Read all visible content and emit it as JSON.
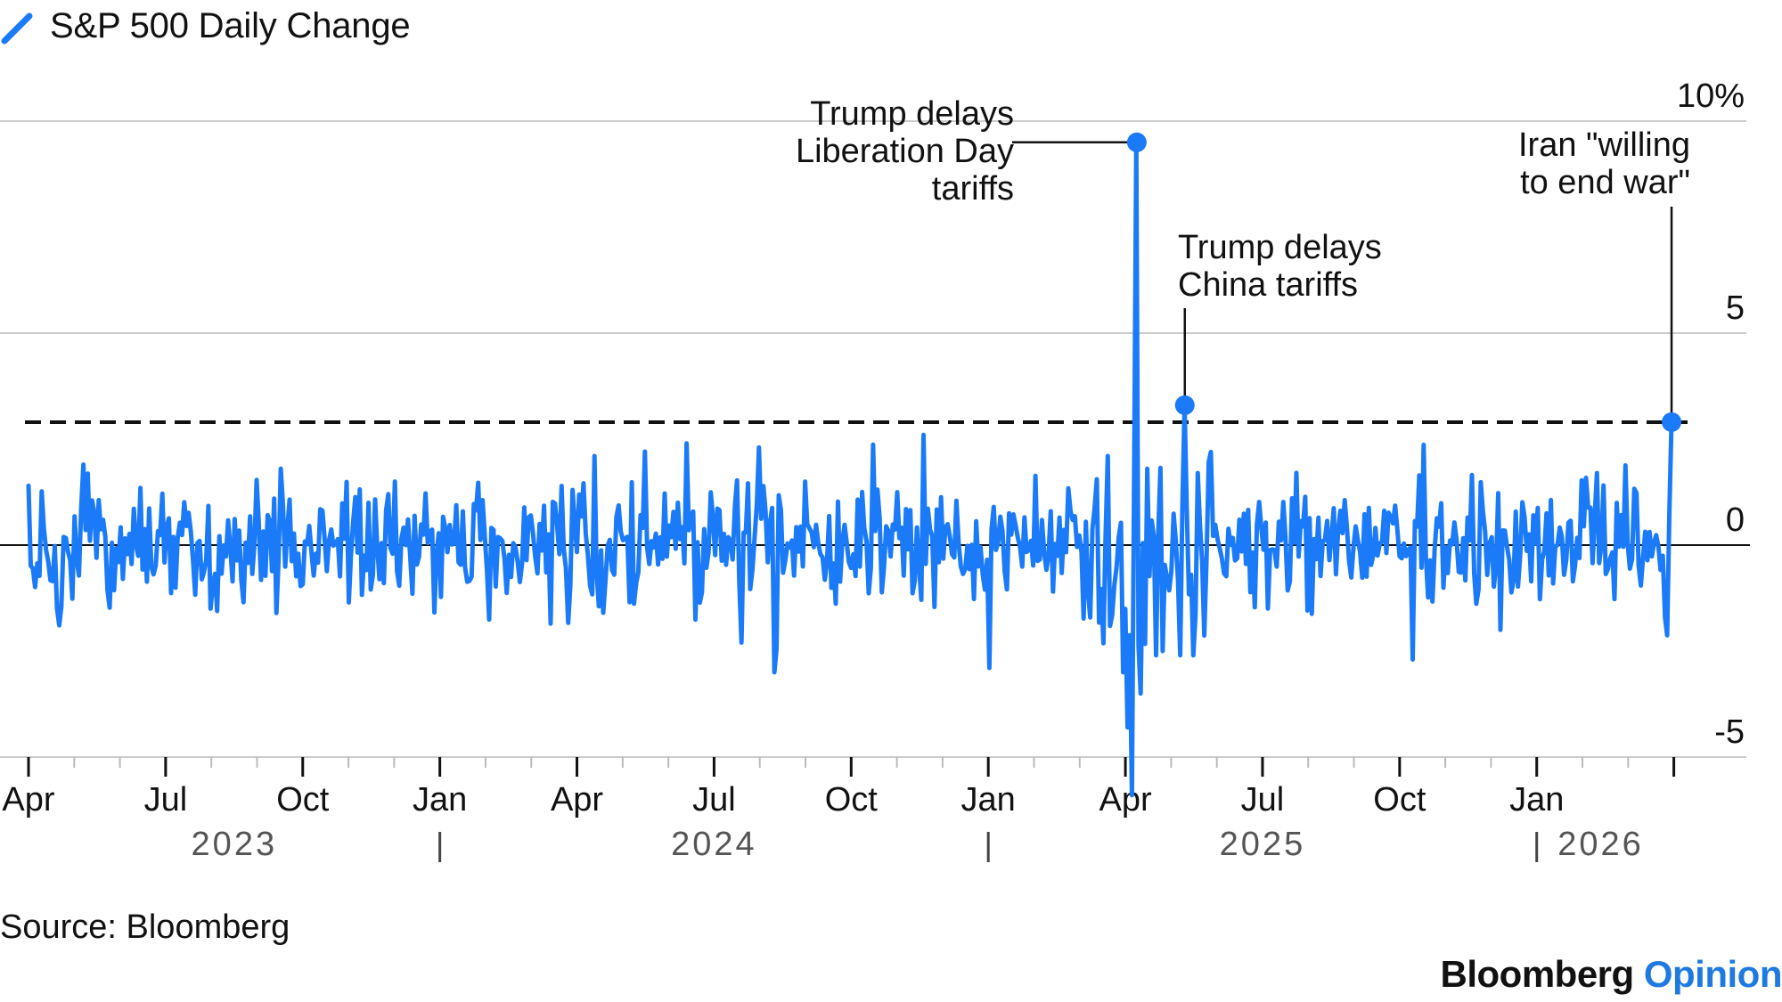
{
  "legend": {
    "label": "S&P 500 Daily Change",
    "icon": "line-swatch-icon",
    "color": "#1a7af8"
  },
  "source": "Source: Bloomberg",
  "brand": {
    "part1": "Bloomberg",
    "part2": "Opinion",
    "color1": "#111111",
    "color2": "#1f7ae0"
  },
  "chart_data": {
    "type": "line",
    "title": "S&P 500 Daily Change",
    "ylabel": "%",
    "xlabel": "",
    "ylim": [
      -5,
      10
    ],
    "y_ticks": [
      {
        "value": 10,
        "label": "10%"
      },
      {
        "value": 5,
        "label": "5"
      },
      {
        "value": 0,
        "label": "0"
      },
      {
        "value": -5,
        "label": "-5"
      }
    ],
    "x_ticks": [
      {
        "t": 0,
        "label": "Apr"
      },
      {
        "t": 3,
        "label": "Jul"
      },
      {
        "t": 6,
        "label": "Oct"
      },
      {
        "t": 9,
        "label": "Jan"
      },
      {
        "t": 12,
        "label": "Apr"
      },
      {
        "t": 15,
        "label": "Jul"
      },
      {
        "t": 18,
        "label": "Oct"
      },
      {
        "t": 21,
        "label": "Jan"
      },
      {
        "t": 24,
        "label": "Apr"
      },
      {
        "t": 27,
        "label": "Jul"
      },
      {
        "t": 30,
        "label": "Oct"
      },
      {
        "t": 33,
        "label": "Jan"
      }
    ],
    "x_range_months": [
      -0.05,
      36.3
    ],
    "year_labels": [
      {
        "t": 4.5,
        "label": "2023"
      },
      {
        "t": 15.0,
        "label": "2024"
      },
      {
        "t": 27.0,
        "label": "2025"
      },
      {
        "t": 34.4,
        "label": "2026"
      }
    ],
    "year_separators": [
      9,
      21,
      33
    ],
    "reference_line": {
      "value": 2.9,
      "style": "dashed"
    },
    "series": [
      {
        "name": "S&P 500 Daily Change",
        "color": "#1a7af8",
        "note": "daily values approximated; key annotated points listed below"
      }
    ],
    "highlights": [
      {
        "t": 24.25,
        "value": 9.5,
        "label": "Trump delays Liberation Day tariffs"
      },
      {
        "t": 25.3,
        "value": 3.3,
        "label": "Trump delays China tariffs"
      },
      {
        "t": 35.95,
        "value": 2.9,
        "label": "Iran \"willing to end war\""
      }
    ],
    "annotations": [
      {
        "lines": [
          "Trump delays",
          "Liberation Day",
          "tariffs"
        ]
      },
      {
        "lines": [
          "Trump delays",
          "China tariffs"
        ]
      },
      {
        "lines": [
          "Iran \"willing",
          "to end war\""
        ]
      }
    ]
  }
}
